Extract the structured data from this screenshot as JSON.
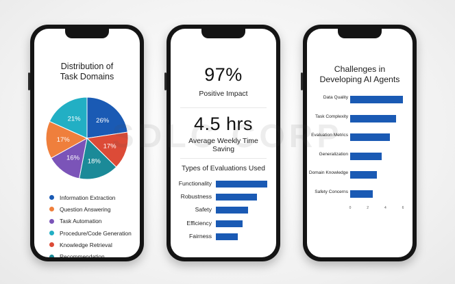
{
  "watermark": "SDLC CORP",
  "phone1": {
    "title_line1": "Distribution of",
    "title_line2": "Task Domains"
  },
  "phone2": {
    "stat1_value": "97%",
    "stat1_label": "Positive Impact",
    "stat2_value": "4.5 hrs",
    "stat2_label_line1": "Average Weekly Time",
    "stat2_label_line2": "Saving",
    "bars_title": "Types of Evaluations Used"
  },
  "phone3": {
    "title_line1": "Challenges in",
    "title_line2": "Developing AI Agents"
  },
  "chart_data": [
    {
      "type": "pie",
      "title": "Distribution of Task Domains",
      "slices": [
        {
          "label": "Information Extraction",
          "value": 26,
          "display": "26%",
          "color": "#1a5ab4"
        },
        {
          "label": "Knowledge Retrieval",
          "value": 17,
          "display": "17%",
          "color": "#dc4b37"
        },
        {
          "label": "Recommendation",
          "value": 18,
          "display": "18%",
          "color": "#1b8a98"
        },
        {
          "label": "Task Automation",
          "value": 16,
          "display": "16%",
          "color": "#7b54b8"
        },
        {
          "label": "Question Answering",
          "value": 17,
          "display": "17%",
          "color": "#ef7f3c"
        },
        {
          "label": "Procedure/Code Generation",
          "value": 21,
          "display": "21%",
          "color": "#22afc4"
        }
      ],
      "legend": [
        {
          "label": "Information Extraction",
          "color": "#1a5ab4"
        },
        {
          "label": "Question Answering",
          "color": "#ef7f3c"
        },
        {
          "label": "Task Automation",
          "color": "#7b54b8"
        },
        {
          "label": "Procedure/Code Generation",
          "color": "#22afc4"
        },
        {
          "label": "Knowledge Retrieval",
          "color": "#dc4b37"
        },
        {
          "label": "Recommendation",
          "color": "#1b8a98"
        }
      ]
    },
    {
      "type": "bar",
      "orientation": "horizontal",
      "title": "Types of Evaluations Used",
      "categories": [
        "Functionality",
        "Robustness",
        "Safety",
        "Efficiency",
        "Fairness"
      ],
      "values": [
        10,
        8,
        6.2,
        5.2,
        4.2
      ],
      "xlim": [
        0,
        10
      ],
      "color": "#1a5ab4"
    },
    {
      "type": "bar",
      "orientation": "horizontal",
      "title": "Challenges in Developing AI Agents",
      "categories": [
        "Data Quality",
        "Task Complexity",
        "Evaluation Metrics",
        "Generalization",
        "Domain Knowledge",
        "Safety Concerns"
      ],
      "values": [
        6.0,
        5.2,
        4.5,
        3.6,
        3.0,
        2.6
      ],
      "xlim": [
        0,
        6
      ],
      "xticks": [
        "0",
        "2",
        "4",
        "6"
      ],
      "color": "#1a5ab4"
    }
  ]
}
